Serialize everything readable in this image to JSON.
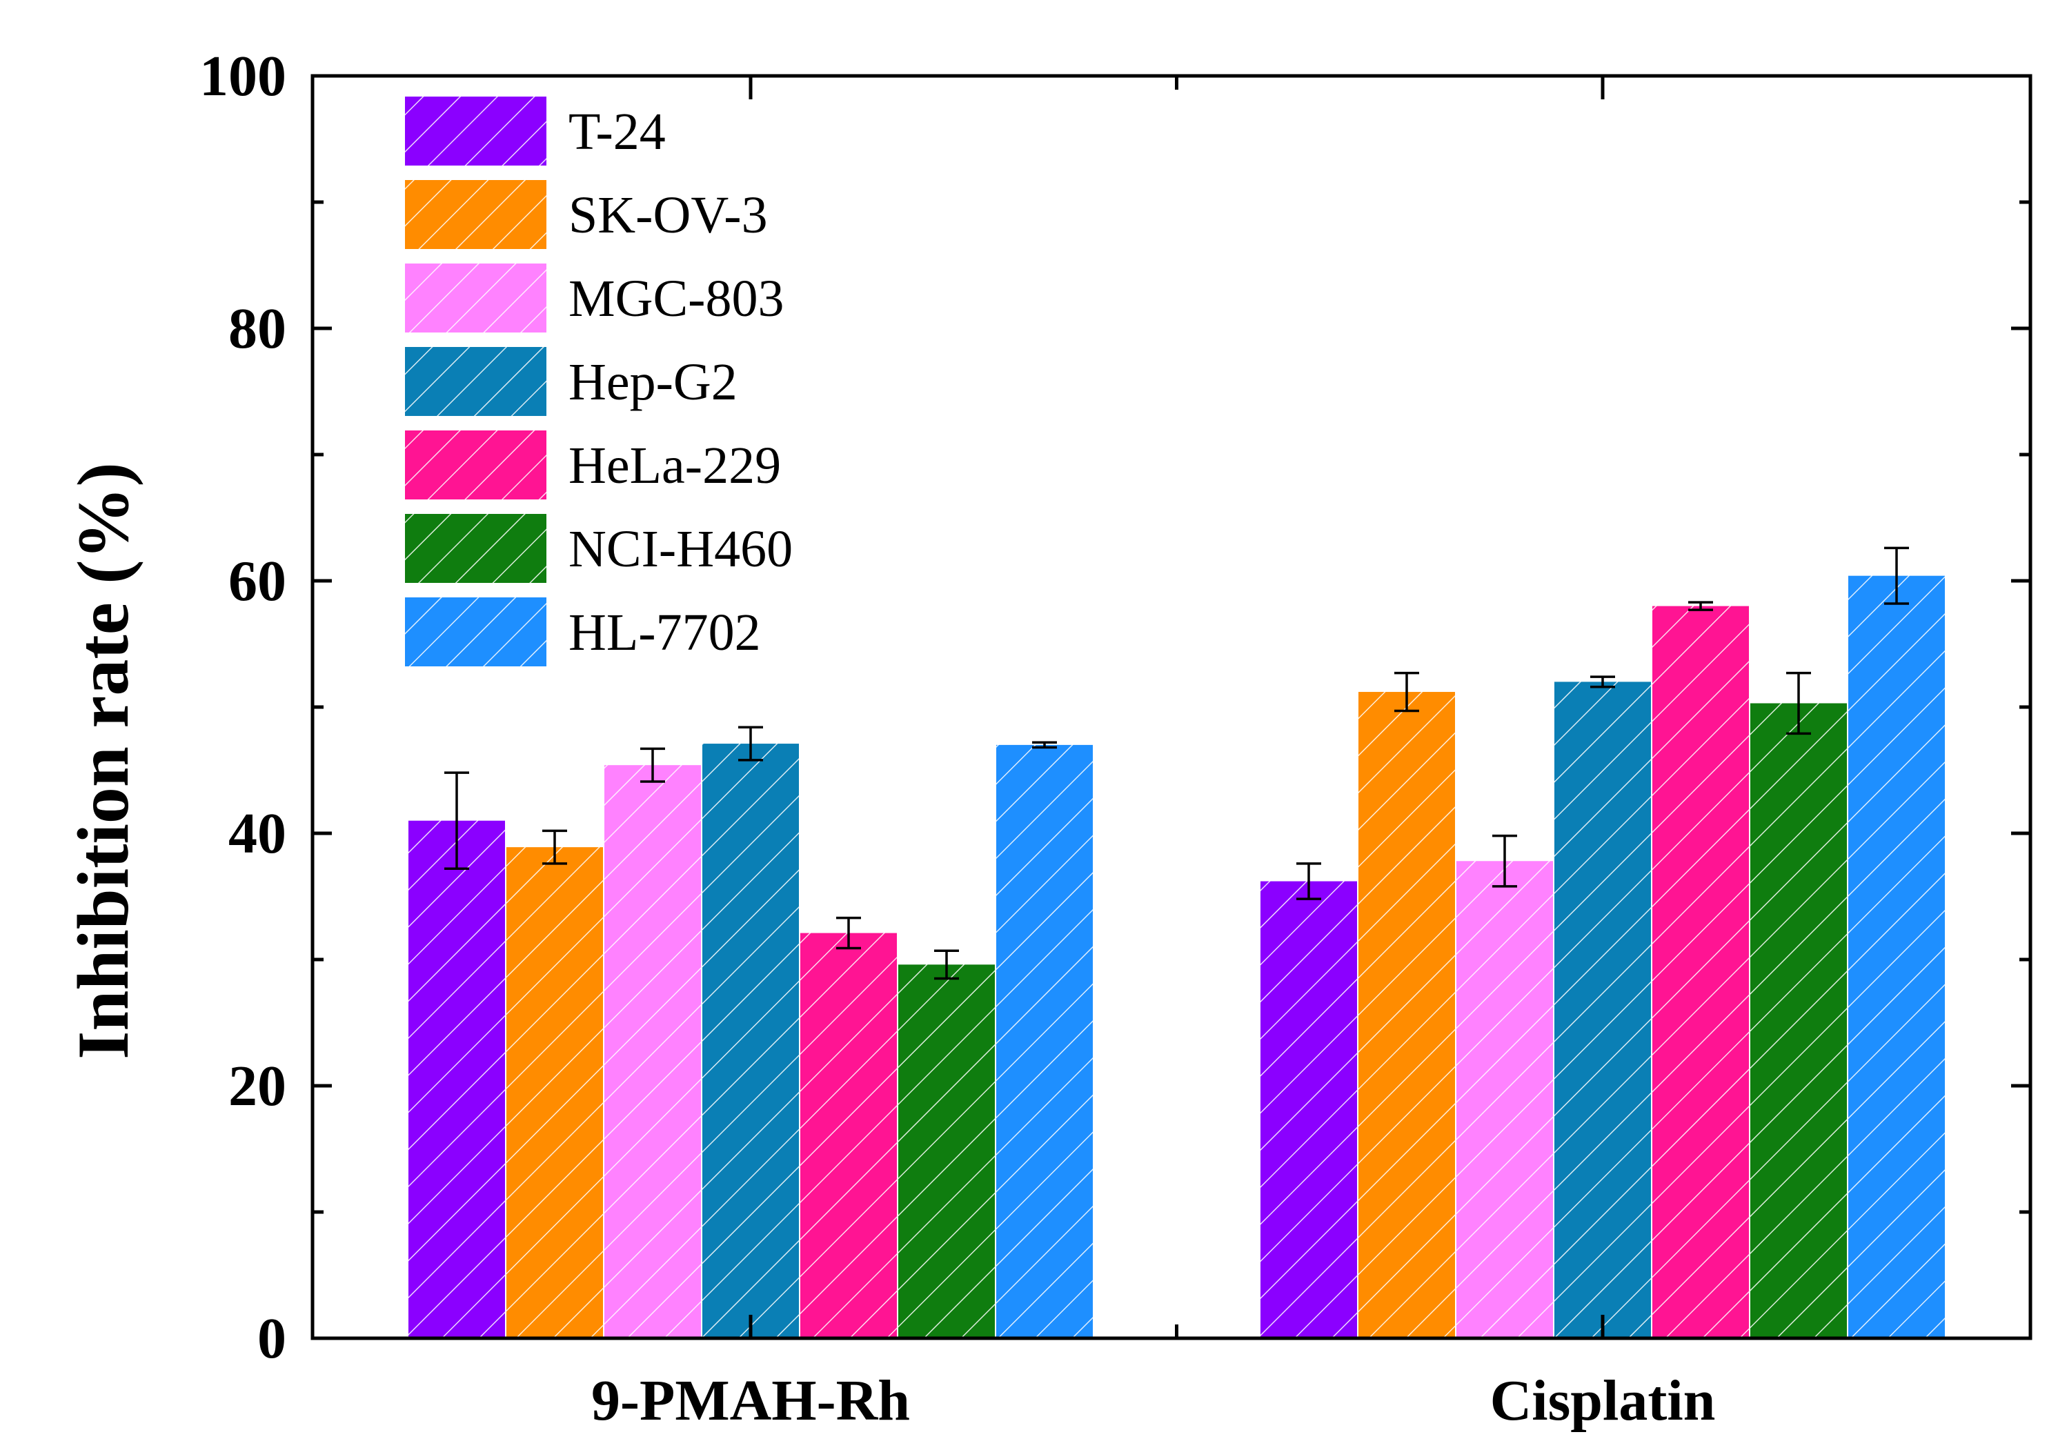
{
  "chart_data": {
    "type": "bar",
    "title": "",
    "xlabel": "",
    "ylabel": "Inhibition rate (%)",
    "ylim": [
      0,
      100
    ],
    "yticks": [
      "0",
      "20",
      "40",
      "60",
      "80",
      "100"
    ],
    "categories": [
      "9-PMAH-Rh",
      "Cisplatin"
    ],
    "legend_position": "top-left",
    "series": [
      {
        "name": "T-24",
        "color": "#8B00FF",
        "values": [
          41.0,
          36.2
        ],
        "errors": [
          3.8,
          1.4
        ]
      },
      {
        "name": "SK-OV-3",
        "color": "#FF8C00",
        "values": [
          38.9,
          51.2
        ],
        "errors": [
          1.3,
          1.5
        ]
      },
      {
        "name": "MGC-803",
        "color": "#FF82FF",
        "values": [
          45.4,
          37.8
        ],
        "errors": [
          1.3,
          2.0
        ]
      },
      {
        "name": "Hep-G2",
        "color": "#0A7FB5",
        "values": [
          47.1,
          52.0
        ],
        "errors": [
          1.3,
          0.4
        ]
      },
      {
        "name": "HeLa-229",
        "color": "#FF1493",
        "values": [
          32.1,
          58.0
        ],
        "errors": [
          1.2,
          0.3
        ]
      },
      {
        "name": "NCI-H460",
        "color": "#0F7D0F",
        "values": [
          29.6,
          50.3
        ],
        "errors": [
          1.1,
          2.4
        ]
      },
      {
        "name": "HL-7702",
        "color": "#1E8FFF",
        "values": [
          47.0,
          60.4
        ],
        "errors": [
          0.2,
          2.2
        ]
      }
    ]
  }
}
